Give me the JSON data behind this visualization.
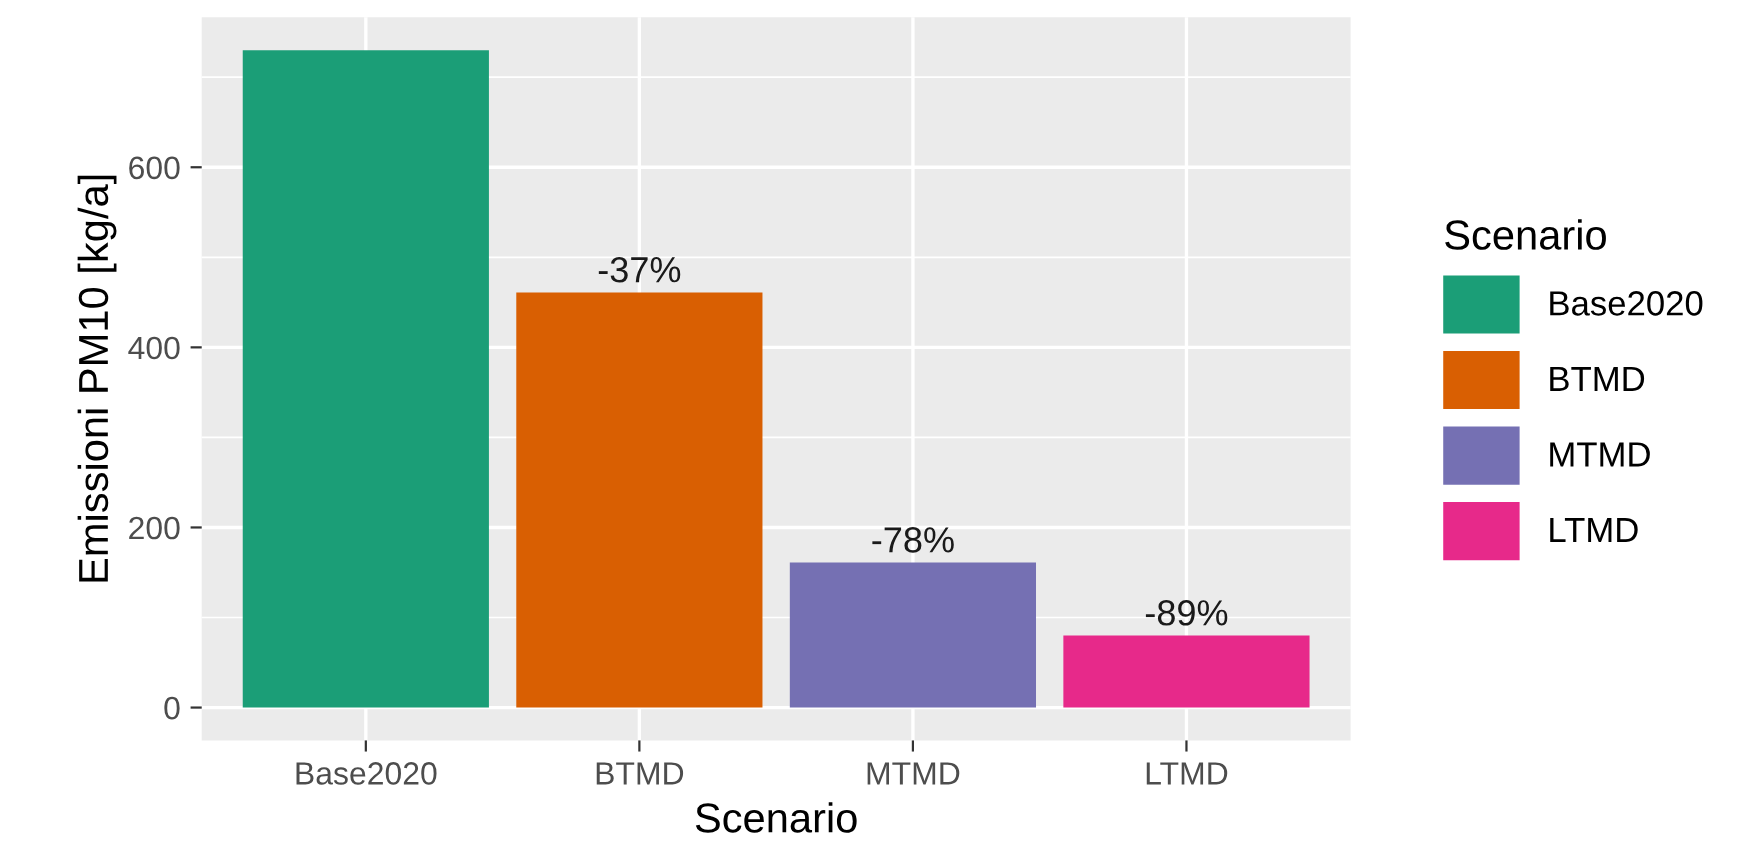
{
  "chart_data": {
    "type": "bar",
    "xlabel": "Scenario",
    "ylabel": "Emissioni PM10 [kg/a]",
    "legend_title": "Scenario",
    "categories": [
      "Base2020",
      "BTMD",
      "MTMD",
      "LTMD"
    ],
    "series": [
      {
        "name": "Base2020",
        "color": "#1b9e77",
        "values": [
          730,
          null,
          null,
          null
        ]
      },
      {
        "name": "BTMD",
        "color": "#d95f02",
        "values": [
          null,
          461,
          null,
          null
        ]
      },
      {
        "name": "MTMD",
        "color": "#7570b3",
        "values": [
          null,
          null,
          161,
          null
        ]
      },
      {
        "name": "LTMD",
        "color": "#e7298a",
        "values": [
          null,
          null,
          null,
          80
        ]
      }
    ],
    "annotations": [
      {
        "text": "-37%",
        "x": "BTMD",
        "y": 461
      },
      {
        "text": "-78%",
        "x": "MTMD",
        "y": 161
      },
      {
        "text": "-89%",
        "x": "LTMD",
        "y": 80
      }
    ],
    "ylim": [
      -36.5,
      766.5
    ],
    "yticks": [
      0,
      200,
      400,
      600
    ],
    "grid": true,
    "legend": "right"
  }
}
